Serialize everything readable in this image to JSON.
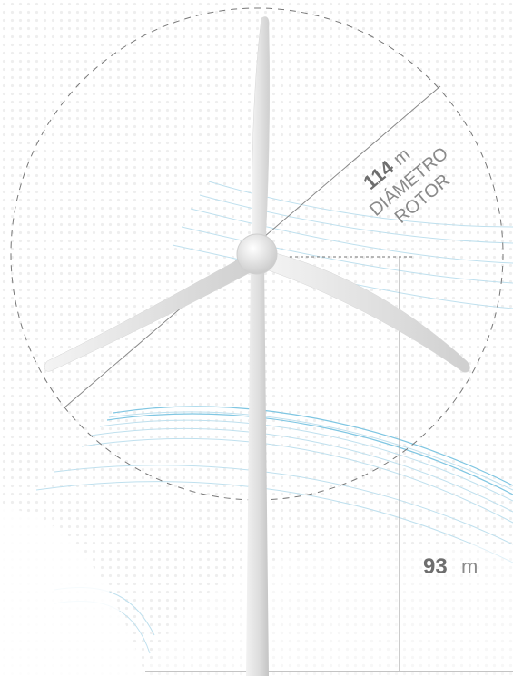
{
  "rotor": {
    "value": 114,
    "unit": "m",
    "label_line1": "DIÁMETRO",
    "label_line2": "ROTOR"
  },
  "height": {
    "value": 93,
    "unit": "m"
  }
}
